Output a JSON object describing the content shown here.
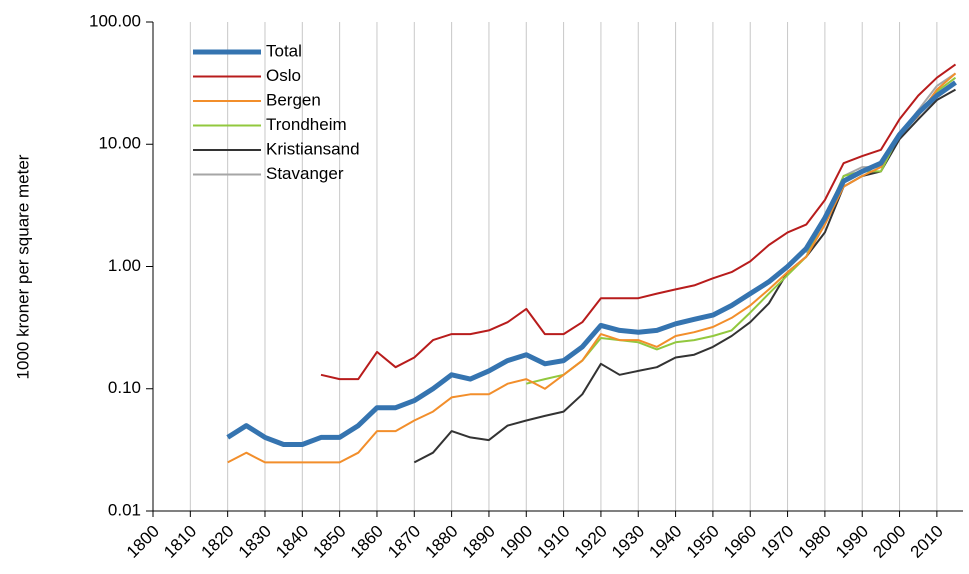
{
  "chart_data": {
    "type": "line",
    "y_label": "1000 kroner per square meter",
    "x": [
      1820,
      1825,
      1830,
      1835,
      1840,
      1845,
      1850,
      1855,
      1860,
      1865,
      1870,
      1875,
      1880,
      1885,
      1890,
      1895,
      1900,
      1905,
      1910,
      1915,
      1920,
      1925,
      1930,
      1935,
      1940,
      1945,
      1950,
      1955,
      1960,
      1965,
      1970,
      1975,
      1980,
      1985,
      1990,
      1995,
      2000,
      2005,
      2010,
      2015
    ],
    "series": [
      {
        "name": "Total",
        "color": "#3574b0",
        "width": 5,
        "values": [
          0.04,
          0.05,
          0.04,
          0.035,
          0.035,
          0.04,
          0.04,
          0.05,
          0.07,
          0.07,
          0.08,
          0.1,
          0.13,
          0.12,
          0.14,
          0.17,
          0.19,
          0.16,
          0.17,
          0.22,
          0.33,
          0.3,
          0.29,
          0.3,
          0.34,
          0.37,
          0.4,
          0.48,
          0.6,
          0.75,
          1.0,
          1.4,
          2.5,
          5.0,
          6.0,
          7.0,
          12,
          18,
          25,
          32
        ]
      },
      {
        "name": "Oslo",
        "color": "#b81c1c",
        "width": 2,
        "values": [
          null,
          null,
          null,
          null,
          null,
          0.13,
          0.12,
          0.12,
          0.2,
          0.15,
          0.18,
          0.25,
          0.28,
          0.28,
          0.3,
          0.35,
          0.45,
          0.28,
          0.28,
          0.35,
          0.55,
          0.55,
          0.55,
          0.6,
          0.65,
          0.7,
          0.8,
          0.9,
          1.1,
          1.5,
          1.9,
          2.2,
          3.5,
          7,
          8,
          9,
          16,
          25,
          35,
          45
        ]
      },
      {
        "name": "Bergen",
        "color": "#f28e2b",
        "width": 2,
        "values": [
          0.025,
          0.03,
          0.025,
          0.025,
          0.025,
          0.025,
          0.025,
          0.03,
          0.045,
          0.045,
          0.055,
          0.065,
          0.085,
          0.09,
          0.09,
          0.11,
          0.12,
          0.1,
          0.13,
          0.17,
          0.28,
          0.25,
          0.25,
          0.22,
          0.27,
          0.29,
          0.32,
          0.38,
          0.48,
          0.65,
          0.9,
          1.2,
          2.2,
          4.5,
          5.5,
          6.5,
          12,
          17,
          28,
          38
        ]
      },
      {
        "name": "Trondheim",
        "color": "#92c83e",
        "width": 2,
        "values": [
          null,
          null,
          null,
          null,
          null,
          null,
          null,
          null,
          null,
          null,
          null,
          null,
          null,
          null,
          null,
          null,
          0.11,
          0.12,
          0.13,
          0.17,
          0.26,
          0.25,
          0.24,
          0.21,
          0.24,
          0.25,
          0.27,
          0.3,
          0.42,
          0.6,
          0.85,
          1.2,
          2.5,
          5.5,
          6,
          6,
          12,
          18,
          27,
          35
        ]
      },
      {
        "name": "Kristiansand",
        "color": "#333333",
        "width": 2,
        "values": [
          null,
          null,
          null,
          null,
          null,
          null,
          null,
          null,
          null,
          null,
          0.025,
          0.03,
          0.045,
          0.04,
          0.038,
          0.05,
          0.055,
          0.06,
          0.065,
          0.09,
          0.16,
          0.13,
          0.14,
          0.15,
          0.18,
          0.19,
          0.22,
          0.27,
          0.35,
          0.5,
          0.9,
          1.2,
          1.9,
          4.5,
          5.5,
          6,
          11,
          16,
          23,
          28
        ]
      },
      {
        "name": "Stavanger",
        "color": "#a6a6a6",
        "width": 2,
        "values": [
          null,
          null,
          null,
          null,
          null,
          null,
          null,
          null,
          null,
          null,
          null,
          null,
          null,
          null,
          null,
          null,
          null,
          null,
          null,
          null,
          null,
          null,
          null,
          null,
          null,
          null,
          null,
          null,
          null,
          null,
          null,
          1.3,
          2.4,
          5.5,
          6.5,
          6.5,
          12,
          19,
          30,
          38
        ]
      }
    ],
    "xlim": [
      1800,
      2017
    ],
    "xticks": [
      1800,
      1810,
      1820,
      1830,
      1840,
      1850,
      1860,
      1870,
      1880,
      1890,
      1900,
      1910,
      1920,
      1930,
      1940,
      1950,
      1960,
      1970,
      1980,
      1990,
      2000,
      2010
    ],
    "ylim": [
      0.01,
      100
    ],
    "yticks": [
      {
        "value": 0.01,
        "label": "0.01"
      },
      {
        "value": 0.1,
        "label": "0.10"
      },
      {
        "value": 1,
        "label": "1.00"
      },
      {
        "value": 10,
        "label": "10.00"
      },
      {
        "value": 100,
        "label": "100.00"
      }
    ],
    "log_y": true,
    "grid": "x",
    "legend": "upper left"
  }
}
